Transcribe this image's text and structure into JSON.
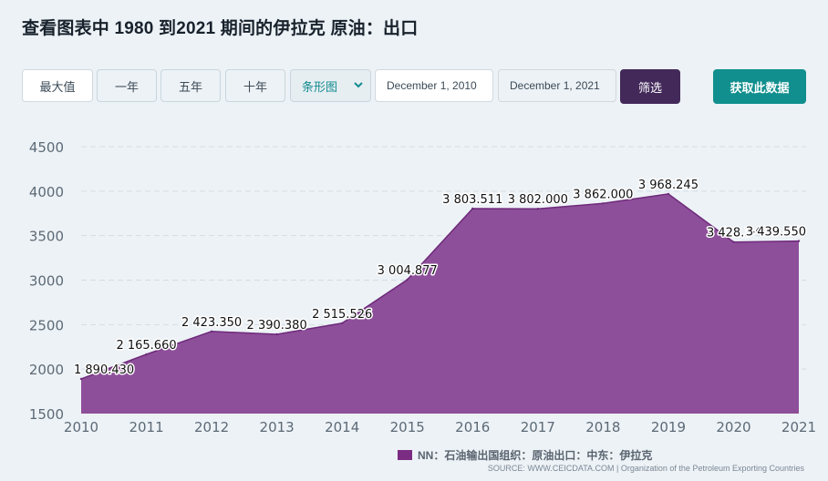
{
  "title": "查看图表中 1980 到2021 期间的伊拉克 原油：出口",
  "toolbar": {
    "max": "最大值",
    "one_year": "一年",
    "five_year": "五年",
    "ten_year": "十年",
    "chart_type": "条形图",
    "start_date": "December 1, 2010",
    "end_date": "December 1, 2021",
    "filter": "筛选",
    "get_data": "获取此数据"
  },
  "legend_label": "NN：石油输出国组织：原油出口：中东：伊拉克",
  "source": "SOURCE: WWW.CEICDATA.COM | Organization of the Petroleum Exporting Countries",
  "colors": {
    "area": "#8e4f9a",
    "line": "#6e2a7a",
    "grid": "#d3dde5",
    "axis_text": "#5c6a76"
  },
  "chart_data": {
    "type": "area",
    "title": "",
    "xlabel": "",
    "ylabel": "",
    "x": [
      "2010",
      "2011",
      "2012",
      "2013",
      "2014",
      "2015",
      "2016",
      "2017",
      "2018",
      "2019",
      "2020",
      "2021"
    ],
    "series": [
      {
        "name": "NN：石油输出国组织：原油出口：中东：伊拉克",
        "values": [
          1890.43,
          2165.66,
          2423.35,
          2390.38,
          2515.526,
          3004.877,
          3803.511,
          3802.0,
          3862.0,
          3968.245,
          3428.3,
          3439.55
        ]
      }
    ],
    "data_labels": [
      "1 890.430",
      "2 165.660",
      "2 423.350",
      "2 390.380",
      "2 515.526",
      "3 004.877",
      "3 803.511",
      "3 802.000",
      "3 862.000",
      "3 968.245",
      "3 428.3·⁴",
      "3 439.550"
    ],
    "y_ticks": [
      1500,
      2000,
      2500,
      3000,
      3500,
      4000,
      4500
    ],
    "ylim": [
      1500,
      4500
    ],
    "grid": true,
    "legend_position": "bottom"
  }
}
